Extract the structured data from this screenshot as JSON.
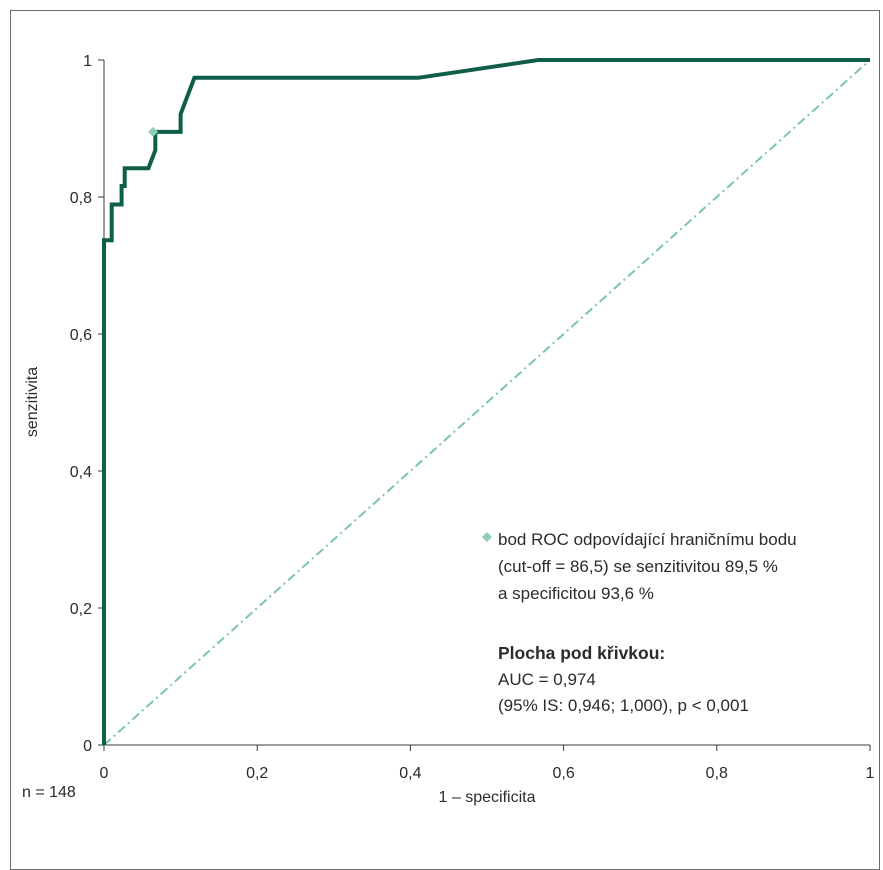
{
  "chart_data": {
    "type": "line",
    "xlabel": "1 – specificita",
    "ylabel": "senzitivita",
    "xlim": [
      0,
      1
    ],
    "ylim": [
      0,
      1
    ],
    "x_ticks": [
      "0",
      "0,2",
      "0,4",
      "0,6",
      "0,8",
      "1"
    ],
    "y_ticks": [
      "0",
      "0,2",
      "0,4",
      "0,6",
      "0,8",
      "1"
    ],
    "grid": false,
    "legend_position": "lower-right",
    "series": [
      {
        "style": "solid",
        "color": "#0f5e4a",
        "points": [
          [
            0,
            0
          ],
          [
            0,
            0.737
          ],
          [
            0.01,
            0.737
          ],
          [
            0.01,
            0.789
          ],
          [
            0.023,
            0.789
          ],
          [
            0.023,
            0.816
          ],
          [
            0.027,
            0.816
          ],
          [
            0.027,
            0.842
          ],
          [
            0.058,
            0.842
          ],
          [
            0.067,
            0.868
          ],
          [
            0.067,
            0.895
          ],
          [
            0.1,
            0.895
          ],
          [
            0.1,
            0.921
          ],
          [
            0.118,
            0.974
          ],
          [
            0.41,
            0.974
          ],
          [
            0.567,
            1.0
          ],
          [
            1,
            1
          ]
        ]
      },
      {
        "style": "dash-dot",
        "color": "#7cc4ab",
        "points": [
          [
            0,
            0
          ],
          [
            1,
            1
          ]
        ]
      }
    ],
    "marker": {
      "x": 0.064,
      "y": 0.895,
      "symbol": "diamond",
      "color": "#8fcdb8"
    },
    "annotations": {
      "marker_legend": [
        "bod ROC odpovídající hraničnímu bodu",
        "(cut-off = 86,5) se senzitivitou 89,5 %",
        "a specificitou 93,6 %"
      ],
      "auc_title": "Plocha pod křivkou:",
      "auc_value": "AUC = 0,974",
      "auc_ci": "(95% IS: 0,946; 1,000), p < 0,001",
      "sample_size": "n = 148"
    }
  }
}
